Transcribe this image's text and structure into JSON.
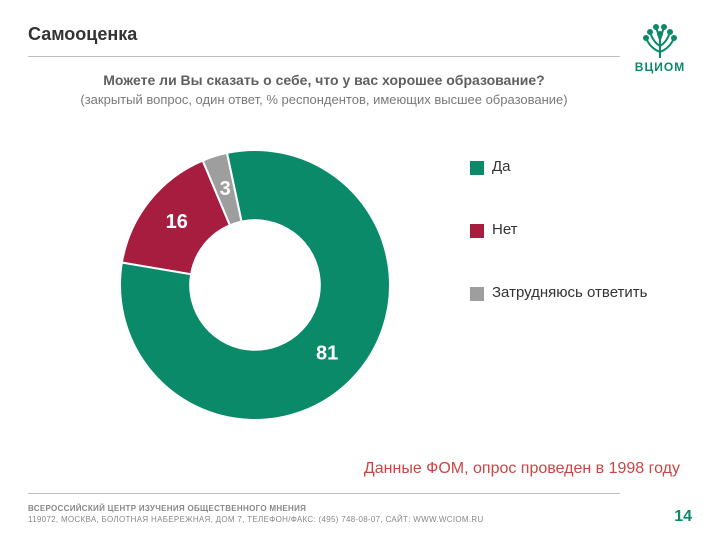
{
  "header": {
    "title": "Самооценка",
    "logo_label": "ВЦИОМ",
    "logo_color": "#0b8a6a"
  },
  "question": {
    "main": "Можете ли Вы сказать о себе, что у вас хорошее образование?",
    "sub": "(закрытый вопрос, один ответ, % респондентов, имеющих высшее образование)"
  },
  "chart": {
    "type": "donut",
    "inner_radius_ratio": 0.48,
    "start_angle_deg": -12,
    "background_color": "#ffffff",
    "slices": [
      {
        "label": "Да",
        "value": 81,
        "color": "#0b8a6a"
      },
      {
        "label": "Нет",
        "value": 16,
        "color": "#a71d3f"
      },
      {
        "label": "Затрудняюсь ответить",
        "value": 3,
        "color": "#9e9e9e"
      }
    ],
    "value_label_fontsize": 20,
    "value_label_color": "#ffffff"
  },
  "legend": {
    "items": [
      {
        "label": "Да",
        "color": "#0b8a6a"
      },
      {
        "label": "Нет",
        "color": "#a71d3f"
      },
      {
        "label": "Затрудняюсь ответить",
        "color": "#9e9e9e"
      }
    ],
    "fontsize": 15,
    "text_color": "#333333"
  },
  "source_note": {
    "text": "Данные ФОМ, опрос проведен в 1998 году",
    "color": "#cc4444",
    "fontsize": 16
  },
  "footer": {
    "line1": "ВСЕРОССИЙСКИЙ ЦЕНТР ИЗУЧЕНИЯ ОБЩЕСТВЕННОГО МНЕНИЯ",
    "line2": "119072, МОСКВА, БОЛОТНАЯ НАБЕРЕЖНАЯ, ДОМ 7, ТЕЛЕФОН/ФАКС: (495) 748-08-07, САЙТ: WWW.WCIOM.RU",
    "page_number": "14",
    "text_color": "#888888",
    "page_color": "#0b8a6a"
  }
}
